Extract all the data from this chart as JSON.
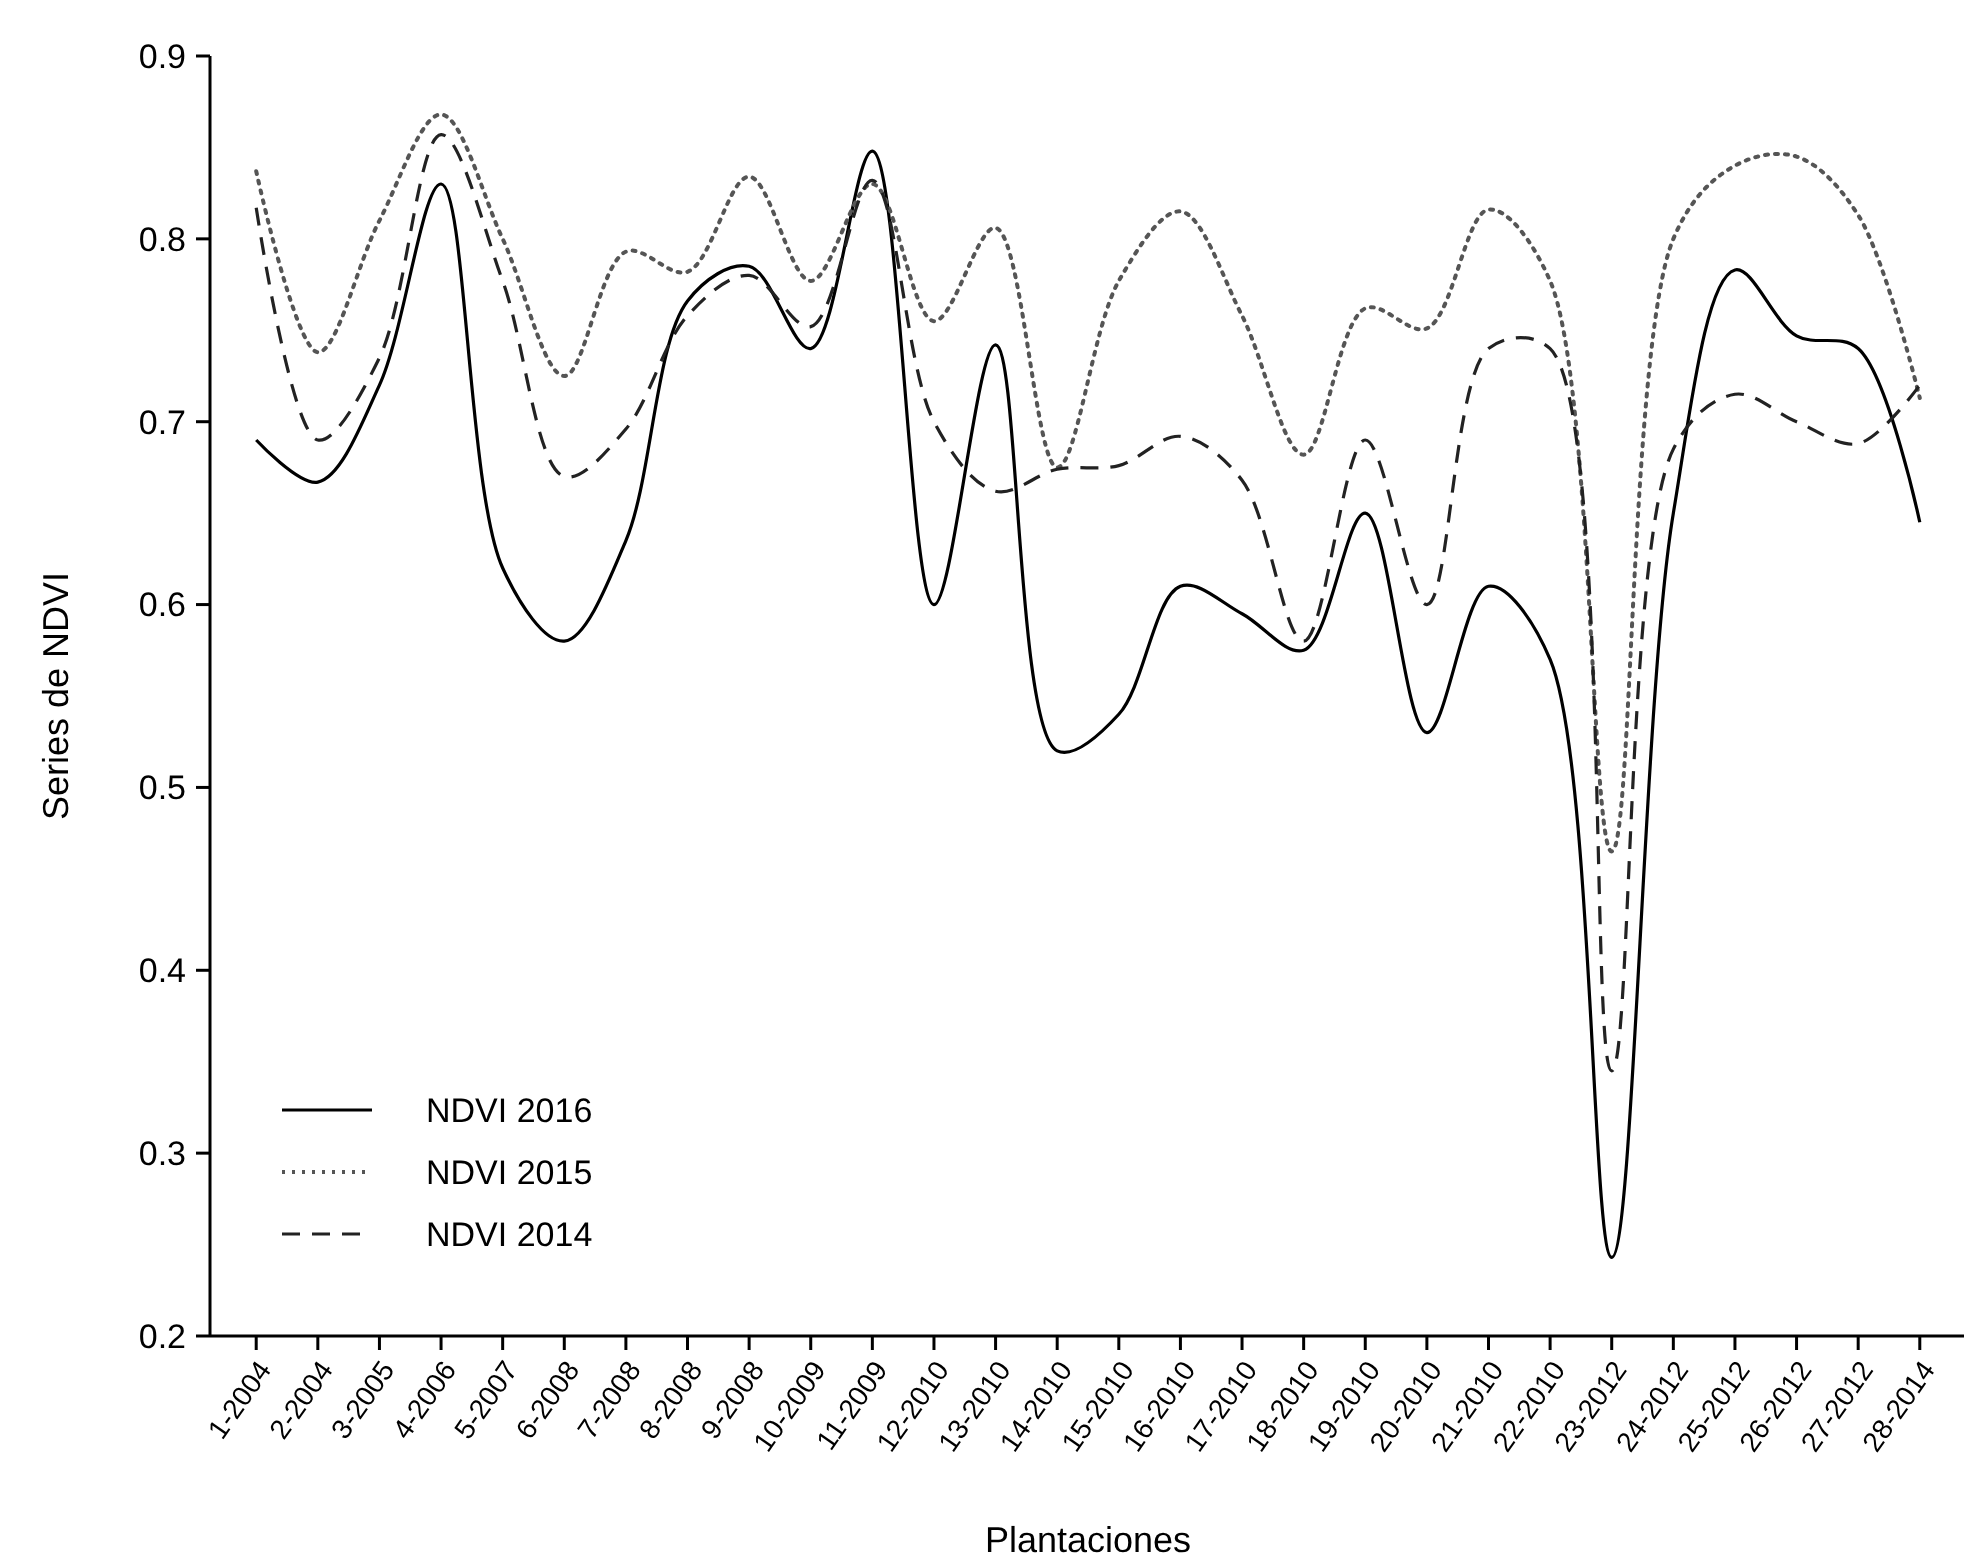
{
  "chart_data": {
    "type": "line",
    "xlabel": "Plantaciones",
    "ylabel": "Series de NDVI",
    "categories": [
      "1-2004",
      "2-2004",
      "3-2005",
      "4-2006",
      "5-2007",
      "6-2008",
      "7-2008",
      "8-2008",
      "9-2008",
      "10-2009",
      "11-2009",
      "12-2010",
      "13-2010",
      "14-2010",
      "15-2010",
      "16-2010",
      "17-2010",
      "18-2010",
      "19-2010",
      "20-2010",
      "21-2010",
      "22-2010",
      "23-2012",
      "24-2012",
      "25-2012",
      "26-2012",
      "27-2012",
      "28-2014"
    ],
    "series": [
      {
        "name": "NDVI 2016",
        "color": "#000000",
        "line_style": "solid",
        "values": [
          0.69,
          0.667,
          0.72,
          0.83,
          0.62,
          0.58,
          0.635,
          0.766,
          0.785,
          0.74,
          0.848,
          0.6,
          0.742,
          0.52,
          0.54,
          0.61,
          0.595,
          0.575,
          0.65,
          0.53,
          0.61,
          0.57,
          0.243,
          0.65,
          0.783,
          0.747,
          0.74,
          0.645
        ]
      },
      {
        "name": "NDVI 2015",
        "color": "#555555",
        "line_style": "dotted",
        "values": [
          0.837,
          0.738,
          0.81,
          0.868,
          0.8,
          0.725,
          0.793,
          0.782,
          0.834,
          0.777,
          0.83,
          0.755,
          0.806,
          0.675,
          0.777,
          0.815,
          0.758,
          0.682,
          0.762,
          0.751,
          0.816,
          0.777,
          0.465,
          0.8,
          0.84,
          0.845,
          0.813,
          0.713
        ]
      },
      {
        "name": "NDVI 2014",
        "color": "#222222",
        "line_style": "dashed",
        "values": [
          0.817,
          0.69,
          0.735,
          0.857,
          0.777,
          0.67,
          0.696,
          0.758,
          0.78,
          0.752,
          0.832,
          0.7,
          0.662,
          0.674,
          0.676,
          0.692,
          0.668,
          0.58,
          0.69,
          0.6,
          0.74,
          0.74,
          0.345,
          0.685,
          0.715,
          0.7,
          0.688,
          0.72
        ]
      }
    ],
    "ylim": [
      0.2,
      0.9
    ],
    "yticks": [
      0.2,
      0.3,
      0.4,
      0.5,
      0.6,
      0.7,
      0.8,
      0.9
    ],
    "grid": false,
    "legend": "bottom left"
  }
}
